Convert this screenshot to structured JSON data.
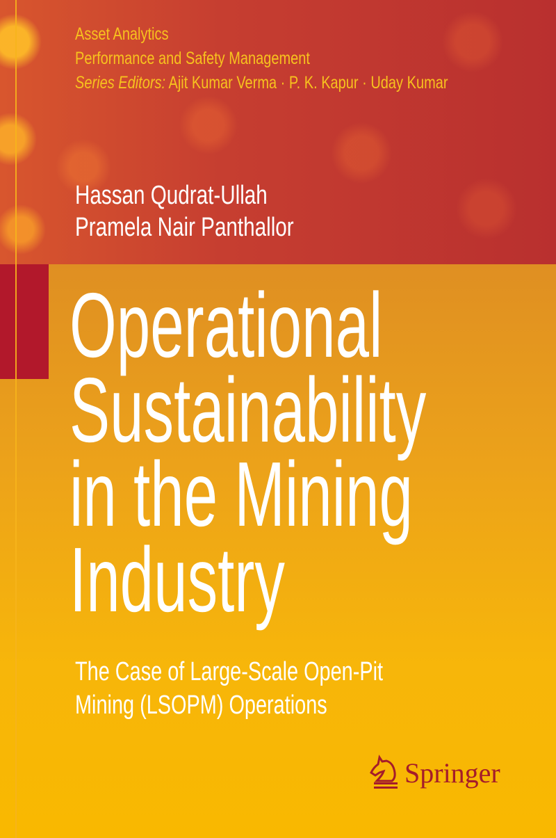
{
  "series": {
    "line1": "Asset Analytics",
    "line2": "Performance and Safety Management",
    "editors_label": "Series Editors:",
    "editors": "Ajit Kumar Verma · P. K. Kapur · Uday Kumar"
  },
  "authors": [
    "Hassan Qudrat-Ullah",
    "Pramela Nair Panthallor"
  ],
  "title_lines": [
    "Operational",
    "Sustainability",
    "in the Mining",
    "Industry"
  ],
  "subtitle_lines": [
    "The Case of Large-Scale Open-Pit",
    "Mining (LSOPM) Operations"
  ],
  "publisher": {
    "name": "Springer",
    "icon": "knight-horse-logo-icon"
  },
  "colors": {
    "top_red": "#c63e30",
    "bottom_yellow": "#f9b800",
    "accent_red": "#b2182b",
    "series_yellow": "#f7c21e"
  }
}
